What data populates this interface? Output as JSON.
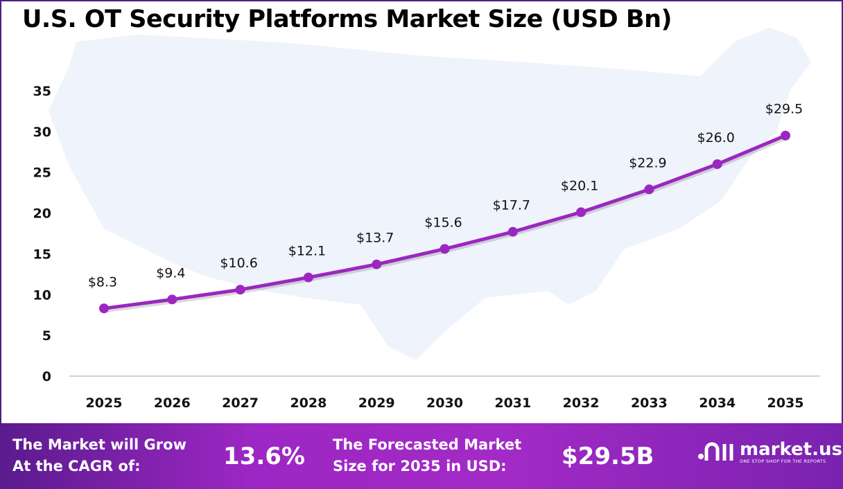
{
  "chart_data": {
    "type": "line",
    "title": "U.S. OT Security Platforms Market Size (USD Bn)",
    "categories": [
      "2025",
      "2026",
      "2027",
      "2028",
      "2029",
      "2030",
      "2031",
      "2032",
      "2033",
      "2034",
      "2035"
    ],
    "values": [
      8.3,
      9.4,
      10.6,
      12.1,
      13.7,
      15.6,
      17.7,
      20.1,
      22.9,
      26.0,
      29.5
    ],
    "data_labels": [
      "$8.3",
      "$9.4",
      "$10.6",
      "$12.1",
      "$13.7",
      "$15.6",
      "$17.7",
      "$20.1",
      "$22.9",
      "$26.0",
      "$29.5"
    ],
    "yticks": [
      "0",
      "5",
      "10",
      "15",
      "20",
      "25",
      "30",
      "35"
    ],
    "ylim": [
      0,
      35
    ],
    "xlabel": "",
    "ylabel": "",
    "grid": false,
    "line_color": "#9b27c0"
  },
  "footer": {
    "cagr_label_1": "The Market will Grow",
    "cagr_label_2": "At the CAGR of:",
    "cagr_value": "13.6%",
    "forecast_label_1": "The Forecasted Market",
    "forecast_label_2": "Size for 2035 in USD:",
    "forecast_value": "$29.5B",
    "logo_name": "market.us",
    "logo_tagline": "ONE STOP SHOP FOR THE REPORTS"
  }
}
